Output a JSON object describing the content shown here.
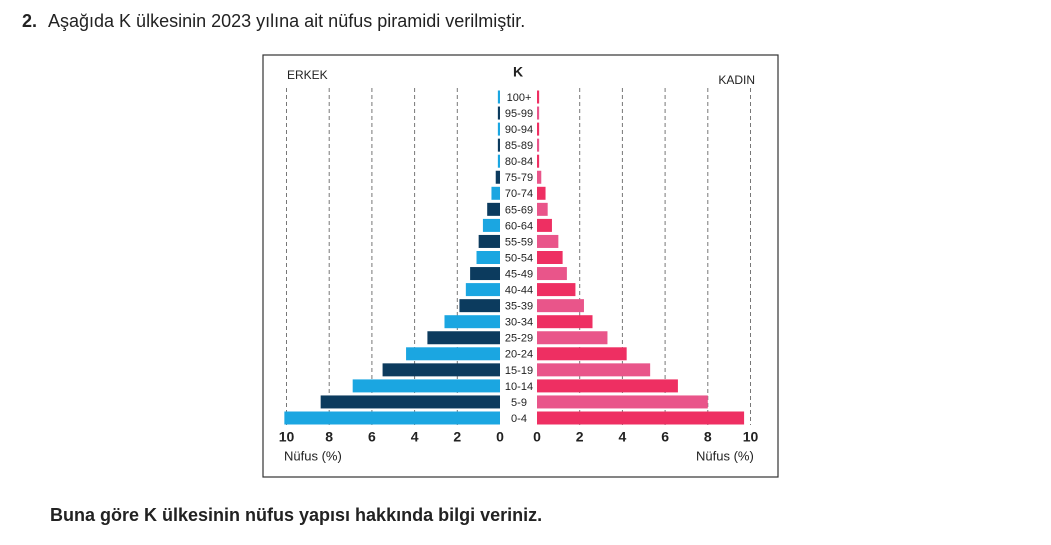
{
  "question_number": "2.",
  "question_text": "Aşağıda K ülkesinin 2023 yılına ait nüfus piramidi verilmiştir.",
  "chart_data": {
    "type": "pyramid",
    "title": "K",
    "xlabel": "Nüfus (%)",
    "categories": [
      "0-4",
      "5-9",
      "10-14",
      "15-19",
      "20-24",
      "25-29",
      "30-34",
      "35-39",
      "40-44",
      "45-49",
      "50-54",
      "55-59",
      "60-64",
      "65-69",
      "70-74",
      "75-79",
      "80-84",
      "85-89",
      "90-94",
      "95-99",
      "100+"
    ],
    "series": [
      {
        "name": "ERKEK",
        "color": [
          "#1ba6e1",
          "#0c3b5e"
        ],
        "values": [
          10.1,
          8.4,
          6.9,
          5.5,
          4.4,
          3.4,
          2.6,
          1.9,
          1.6,
          1.4,
          1.1,
          1.0,
          0.8,
          0.6,
          0.4,
          0.2,
          0.1,
          0.1,
          0.1,
          0.1,
          0.1
        ]
      },
      {
        "name": "KADIN",
        "color": [
          "#ee2f62",
          "#e9558a"
        ],
        "values": [
          9.7,
          8.0,
          6.6,
          5.3,
          4.2,
          3.3,
          2.6,
          2.2,
          1.8,
          1.4,
          1.2,
          1.0,
          0.7,
          0.5,
          0.4,
          0.2,
          0.1,
          0.1,
          0.1,
          0.1,
          0.1
        ]
      }
    ],
    "xlim": [
      0,
      10
    ],
    "xticks": [
      0,
      2,
      4,
      6,
      8,
      10
    ],
    "grid": true
  },
  "prompt": "Buna göre K ülkesinin nüfus yapısı hakkında bilgi veriniz."
}
